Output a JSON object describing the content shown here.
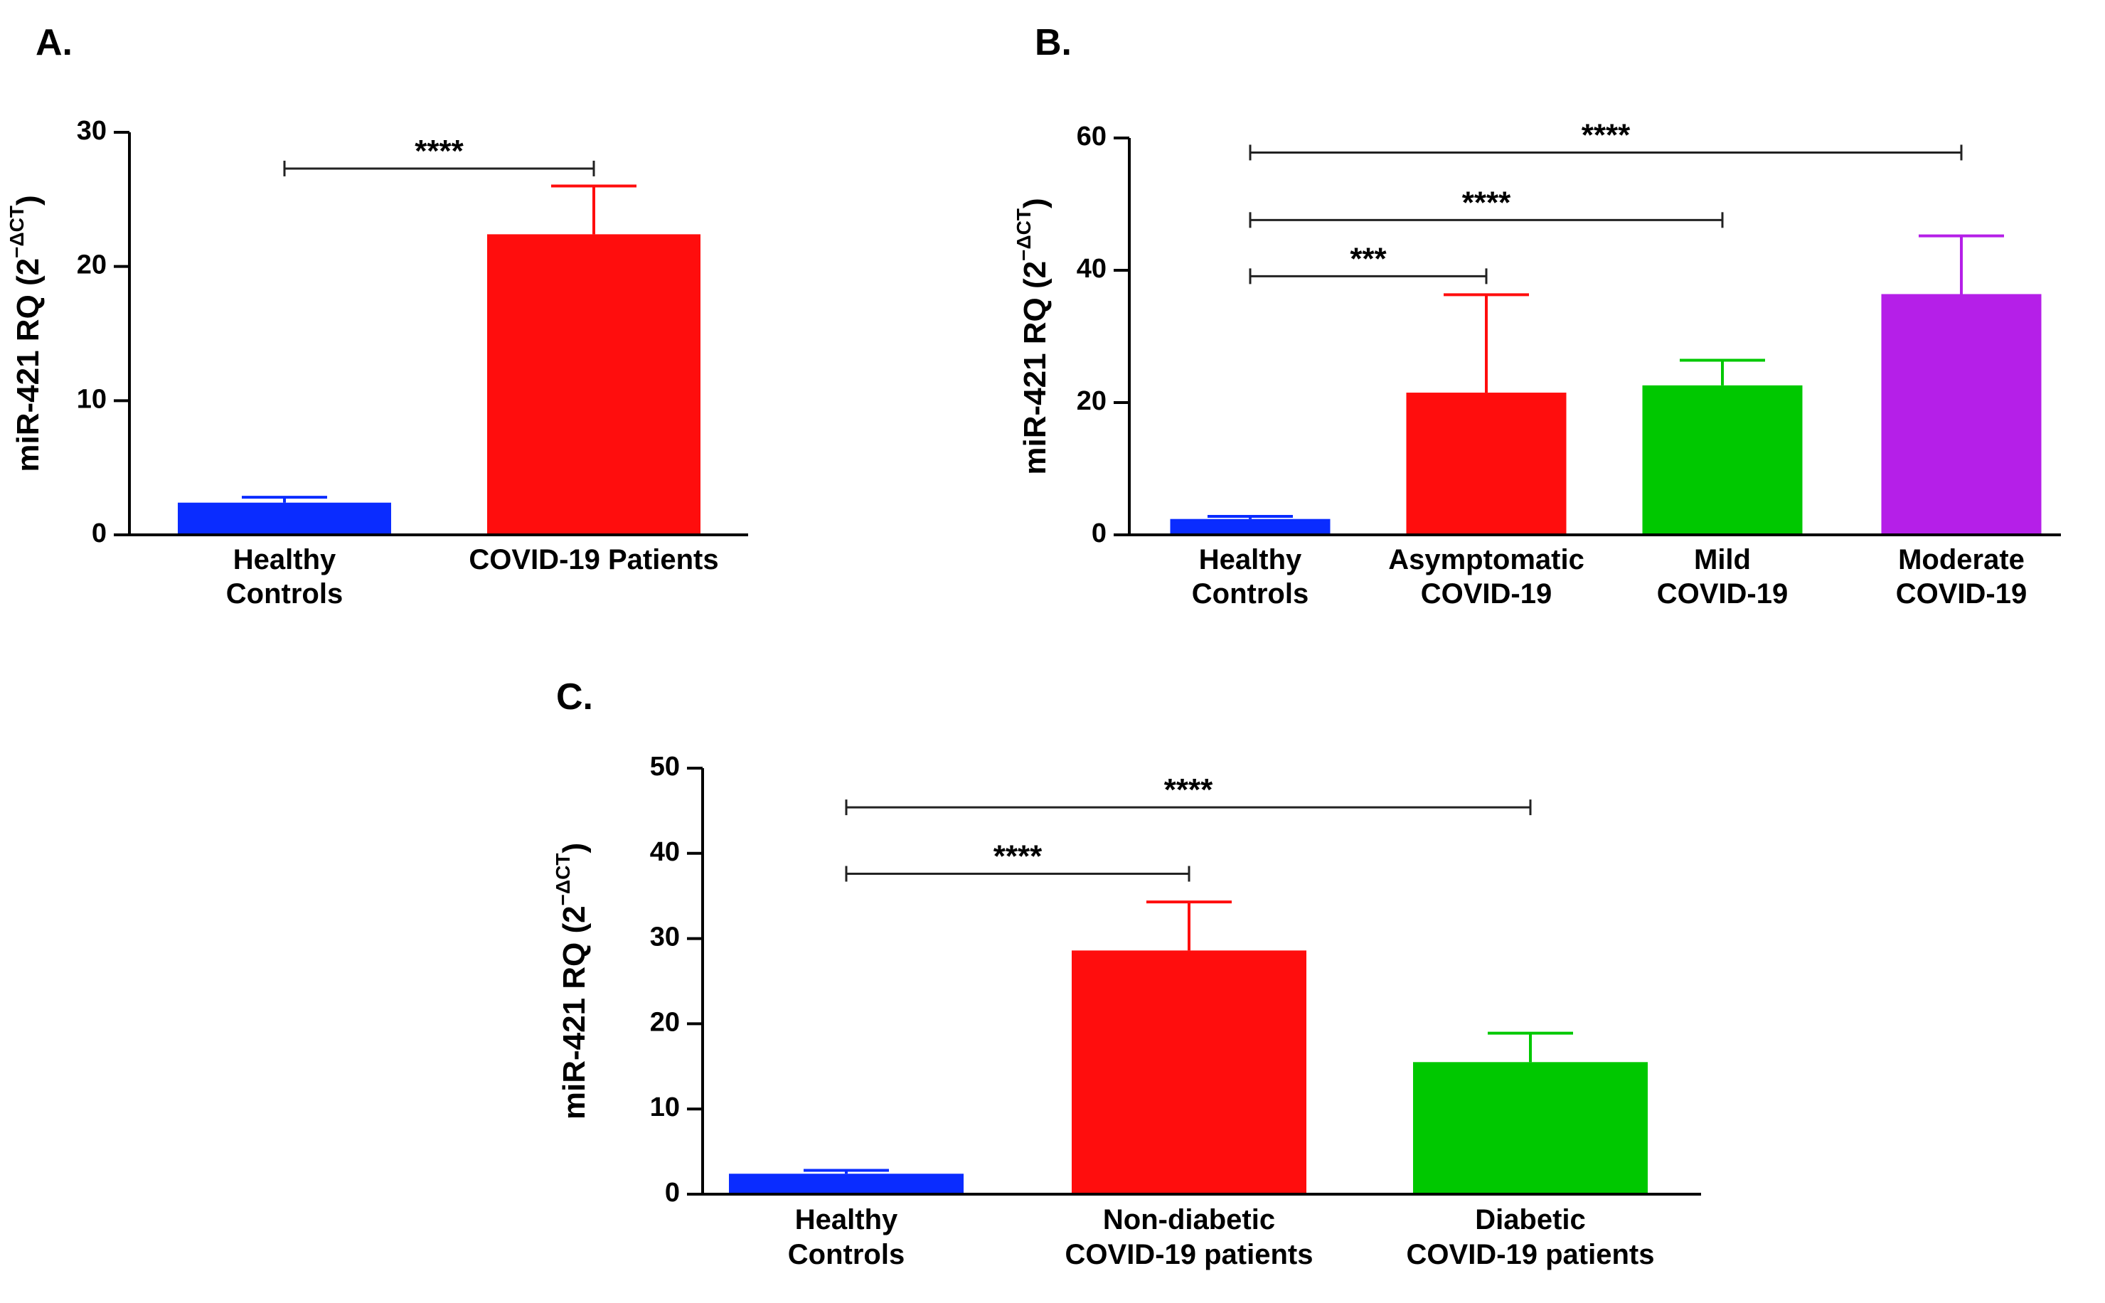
{
  "chart_data": [
    {
      "panel": "A.",
      "type": "bar",
      "ylabel": "miR-421 RQ (2^-ΔCT)",
      "ylabel_base": "miR-421 RQ (2",
      "ylabel_sup": "−ΔCT",
      "ylim": [
        0,
        30
      ],
      "yticks": [
        0,
        10,
        20,
        30
      ],
      "categories": [
        [
          "Healthy",
          "Controls"
        ],
        [
          "COVID-19 Patients"
        ]
      ],
      "values": [
        2.4,
        22.4
      ],
      "errors": [
        0.4,
        3.6
      ],
      "colors": [
        "#0a2cff",
        "#ff0d0d"
      ],
      "significance": [
        {
          "from": 0,
          "to": 1,
          "label": "****",
          "y": 27.3
        }
      ]
    },
    {
      "panel": "B.",
      "type": "bar",
      "ylabel": "miR-421 RQ (2^-ΔCT)",
      "ylabel_base": "miR-421 RQ (2",
      "ylabel_sup": "−ΔCT",
      "ylim": [
        0,
        60
      ],
      "yticks": [
        0,
        20,
        40,
        60
      ],
      "categories": [
        [
          "Healthy",
          "Controls"
        ],
        [
          "Asymptomatic",
          "COVID-19"
        ],
        [
          "Mild",
          "COVID-19"
        ],
        [
          "Moderate",
          "COVID-19"
        ]
      ],
      "values": [
        2.4,
        21.5,
        22.6,
        36.4
      ],
      "errors": [
        0.4,
        14.8,
        3.8,
        8.8
      ],
      "colors": [
        "#0a2cff",
        "#ff0d0d",
        "#00c800",
        "#b51fe8"
      ],
      "significance": [
        {
          "from": 0,
          "to": 1,
          "label": "***",
          "y": 39.1
        },
        {
          "from": 0,
          "to": 2,
          "label": "****",
          "y": 47.6
        },
        {
          "from": 0,
          "to": 3,
          "label": "****",
          "y": 57.8
        }
      ]
    },
    {
      "panel": "C.",
      "type": "bar",
      "ylabel": "miR-421 RQ (2^-ΔCT)",
      "ylabel_base": "miR-421 RQ (2",
      "ylabel_sup": "−ΔCT",
      "ylim": [
        0,
        50
      ],
      "yticks": [
        0,
        10,
        20,
        30,
        40,
        50
      ],
      "categories": [
        [
          "Healthy",
          "Controls"
        ],
        [
          "Non-diabetic",
          "COVID-19 patients"
        ],
        [
          "Diabetic",
          "COVID-19 patients"
        ]
      ],
      "values": [
        2.4,
        28.6,
        15.5
      ],
      "errors": [
        0.4,
        5.7,
        3.4
      ],
      "colors": [
        "#0a2cff",
        "#ff0d0d",
        "#00c800"
      ],
      "significance": [
        {
          "from": 0,
          "to": 1,
          "label": "****",
          "y": 37.6
        },
        {
          "from": 0,
          "to": 2,
          "label": "****",
          "y": 45.4
        }
      ]
    }
  ]
}
